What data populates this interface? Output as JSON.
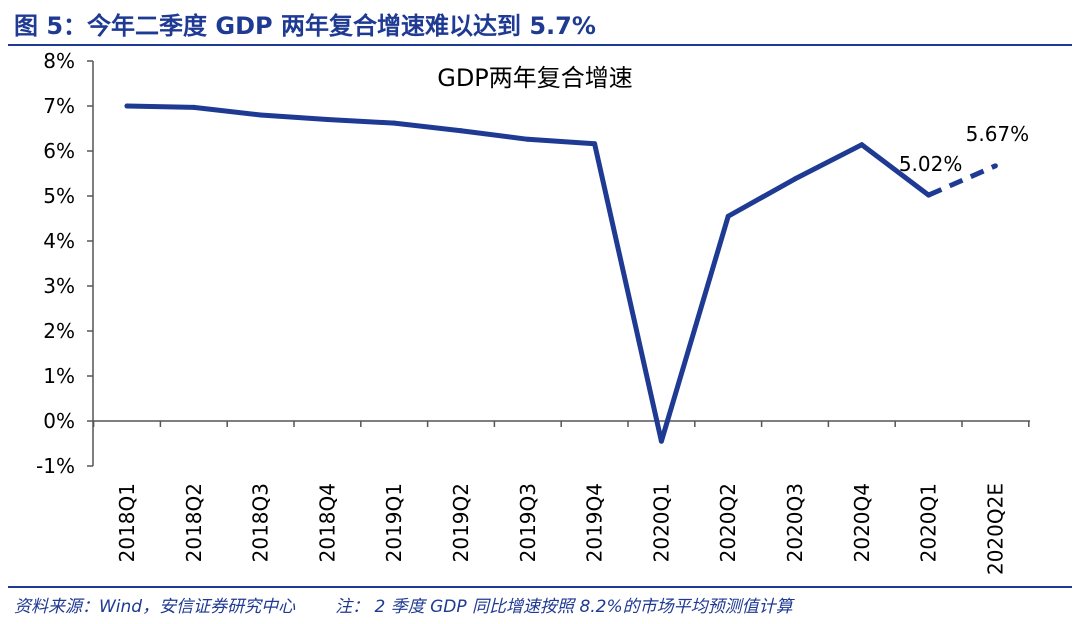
{
  "figure": {
    "title": "图 5：今年二季度 GDP 两年复合增速难以达到 5.7%",
    "source": "资料来源：Wind，安信证券研究中心",
    "note": "注： 2 季度 GDP 同比增速按照 8.2%的市场平均预测值计算"
  },
  "colors": {
    "accent": "#1f3a93",
    "axis": "#555555"
  },
  "chart_data": {
    "type": "line",
    "title": "GDP两年复合增速",
    "xlabel": "",
    "ylabel": "",
    "categories": [
      "2018Q1",
      "2018Q2",
      "2018Q3",
      "2018Q4",
      "2019Q1",
      "2019Q2",
      "2019Q3",
      "2019Q4",
      "2020Q1",
      "2020Q2",
      "2020Q3",
      "2020Q4",
      "2020Q1",
      "2020Q2E"
    ],
    "series": [
      {
        "values": [
          7.0,
          6.97,
          6.8,
          6.7,
          6.62,
          6.45,
          6.26,
          6.16,
          -0.45,
          4.55,
          5.38,
          6.14,
          5.02,
          5.67
        ],
        "dashed_from_index": 12
      }
    ],
    "y_ticks": [
      "8%",
      "7%",
      "6%",
      "5%",
      "4%",
      "3%",
      "2%",
      "1%",
      "0%",
      "-1%"
    ],
    "ylim": [
      -1,
      8
    ],
    "annotations": [
      {
        "category_index": 12,
        "text": "5.02%"
      },
      {
        "category_index": 13,
        "text": "5.67%"
      }
    ],
    "grid": false,
    "legend": "none"
  }
}
